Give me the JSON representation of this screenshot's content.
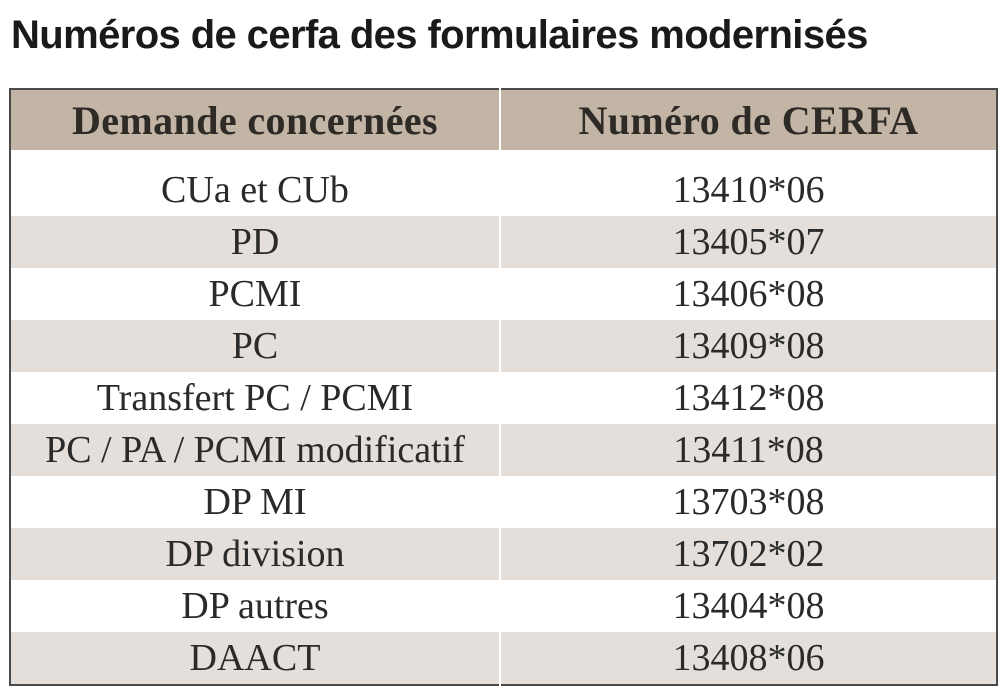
{
  "title": "Numéros de cerfa des formulaires modernisés",
  "table": {
    "headers": [
      "Demande concernées",
      "Numéro de CERFA"
    ],
    "rows": [
      {
        "demande": "CUa et CUb",
        "cerfa": "13410*06"
      },
      {
        "demande": "PD",
        "cerfa": "13405*07"
      },
      {
        "demande": "PCMI",
        "cerfa": "13406*08"
      },
      {
        "demande": "PC",
        "cerfa": "13409*08"
      },
      {
        "demande": "Transfert PC / PCMI",
        "cerfa": "13412*08"
      },
      {
        "demande": "PC / PA / PCMI modificatif",
        "cerfa": "13411*08"
      },
      {
        "demande": "DP MI",
        "cerfa": "13703*08"
      },
      {
        "demande": "DP division",
        "cerfa": "13702*02"
      },
      {
        "demande": "DP autres",
        "cerfa": "13404*08"
      },
      {
        "demande": "DAACT",
        "cerfa": "13408*06"
      }
    ]
  },
  "colors": {
    "header_bg": "#c2b5a5",
    "shaded_row_bg": "#e4dfdb",
    "border": "#4a4a4a"
  }
}
